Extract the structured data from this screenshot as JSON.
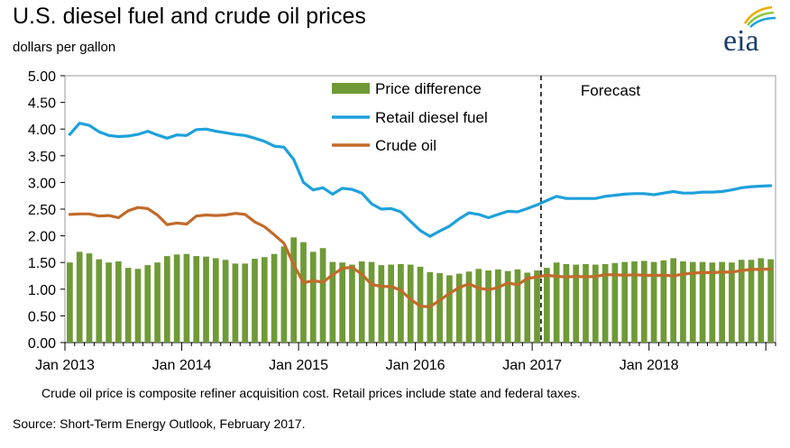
{
  "title": "U.S. diesel fuel and crude oil prices",
  "subtitle": "dollars per gallon",
  "logo_text": "eia",
  "footnote": "Crude oil price is composite refiner acquisition cost.  Retail prices include state and federal taxes.",
  "source": "Source: Short-Term Energy Outlook, February 2017.",
  "colors": {
    "bars": "#6f9a37",
    "diesel": "#1da1db",
    "crude": "#c06b2a",
    "logo_blue": "#1a3e6e"
  },
  "chart_data": {
    "type": "bar+line",
    "x_start": "2013-01",
    "ylim": [
      0,
      5
    ],
    "yticks": [
      "0.00",
      "0.50",
      "1.00",
      "1.50",
      "2.00",
      "2.50",
      "3.00",
      "3.50",
      "4.00",
      "4.50",
      "5.00"
    ],
    "xticks": [
      {
        "label": "Jan 2013",
        "month_index": 0
      },
      {
        "label": "Jan 2014",
        "month_index": 12
      },
      {
        "label": "Jan 2015",
        "month_index": 24
      },
      {
        "label": "Jan 2016",
        "month_index": 36
      },
      {
        "label": "Jan 2017",
        "month_index": 48
      },
      {
        "label": "Jan 2018",
        "month_index": 60
      }
    ],
    "forecast": {
      "label": "Forecast",
      "start_month_index": 49
    },
    "series": [
      {
        "name": "Price difference",
        "kind": "bar",
        "values": [
          1.5,
          1.7,
          1.67,
          1.56,
          1.5,
          1.52,
          1.4,
          1.38,
          1.45,
          1.5,
          1.62,
          1.65,
          1.66,
          1.62,
          1.61,
          1.58,
          1.55,
          1.48,
          1.48,
          1.57,
          1.6,
          1.66,
          1.8,
          1.97,
          1.88,
          1.7,
          1.77,
          1.51,
          1.5,
          1.46,
          1.52,
          1.51,
          1.45,
          1.46,
          1.47,
          1.46,
          1.42,
          1.32,
          1.3,
          1.26,
          1.29,
          1.33,
          1.38,
          1.35,
          1.37,
          1.34,
          1.37,
          1.31,
          1.35,
          1.4,
          1.5,
          1.47,
          1.46,
          1.47,
          1.46,
          1.47,
          1.49,
          1.51,
          1.52,
          1.53,
          1.51,
          1.54,
          1.58,
          1.52,
          1.51,
          1.51,
          1.5,
          1.51,
          1.5,
          1.55,
          1.55,
          1.58,
          1.56
        ]
      },
      {
        "name": "Retail diesel fuel",
        "kind": "line",
        "values": [
          3.9,
          4.11,
          4.07,
          3.95,
          3.88,
          3.86,
          3.87,
          3.9,
          3.96,
          3.89,
          3.83,
          3.89,
          3.88,
          3.99,
          4.0,
          3.96,
          3.93,
          3.9,
          3.88,
          3.83,
          3.77,
          3.68,
          3.66,
          3.43,
          3.0,
          2.86,
          2.9,
          2.78,
          2.89,
          2.87,
          2.8,
          2.6,
          2.5,
          2.51,
          2.45,
          2.27,
          2.1,
          1.99,
          2.09,
          2.18,
          2.32,
          2.43,
          2.4,
          2.34,
          2.4,
          2.46,
          2.45,
          2.51,
          2.58,
          2.66,
          2.74,
          2.7,
          2.7,
          2.7,
          2.7,
          2.74,
          2.76,
          2.78,
          2.79,
          2.79,
          2.77,
          2.8,
          2.83,
          2.8,
          2.8,
          2.82,
          2.82,
          2.83,
          2.86,
          2.9,
          2.92,
          2.93,
          2.94
        ]
      },
      {
        "name": "Crude oil",
        "kind": "line",
        "values": [
          2.4,
          2.41,
          2.41,
          2.37,
          2.38,
          2.34,
          2.47,
          2.53,
          2.51,
          2.39,
          2.21,
          2.24,
          2.22,
          2.37,
          2.39,
          2.38,
          2.39,
          2.42,
          2.4,
          2.26,
          2.17,
          2.02,
          1.86,
          1.46,
          1.12,
          1.16,
          1.13,
          1.27,
          1.39,
          1.41,
          1.28,
          1.09,
          1.05,
          1.05,
          0.98,
          0.81,
          0.68,
          0.67,
          0.79,
          0.92,
          1.03,
          1.1,
          1.02,
          0.99,
          1.03,
          1.12,
          1.08,
          1.2,
          1.23,
          1.26,
          1.24,
          1.23,
          1.24,
          1.23,
          1.24,
          1.27,
          1.27,
          1.26,
          1.27,
          1.26,
          1.26,
          1.26,
          1.25,
          1.28,
          1.3,
          1.31,
          1.31,
          1.32,
          1.32,
          1.35,
          1.37,
          1.37,
          1.38
        ]
      }
    ],
    "legend_position": "top-center"
  }
}
